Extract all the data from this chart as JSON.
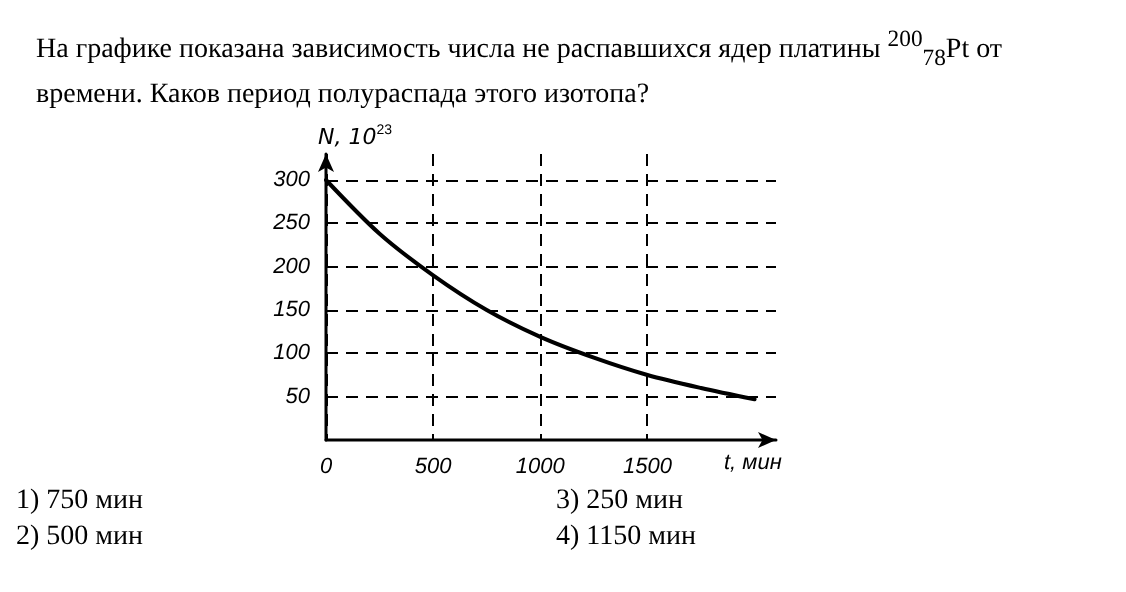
{
  "chart_data": {
    "type": "line",
    "title": "На графике показана зависимость числа не распавшихся ядер платины $^{200}$$_{78}$Pt от времени. Каков период полураспада этого изотопа?",
    "xlabel": "t, мин",
    "ylabel": "N, 10$^{23}$",
    "x": [
      0,
      250,
      500,
      750,
      1000,
      1250,
      1500,
      1750,
      2000
    ],
    "series": [
      {
        "color": "#000000",
        "values": [
          300,
          238,
          190,
          150,
          119,
          95,
          75,
          60,
          47
        ]
      }
    ],
    "xlim": [
      0,
      2100
    ],
    "ylim": [
      0,
      330
    ],
    "xticks": [
      0,
      500,
      1000,
      1500
    ],
    "yticks": [
      50,
      100,
      150,
      200,
      250,
      300
    ],
    "grid": true,
    "marker": "none",
    "line_style": "solid",
    "annotations": [
      "1) 750 мин",
      "2) 500 мин",
      "3) 250 мин",
      "4) 1150 мин"
    ]
  }
}
